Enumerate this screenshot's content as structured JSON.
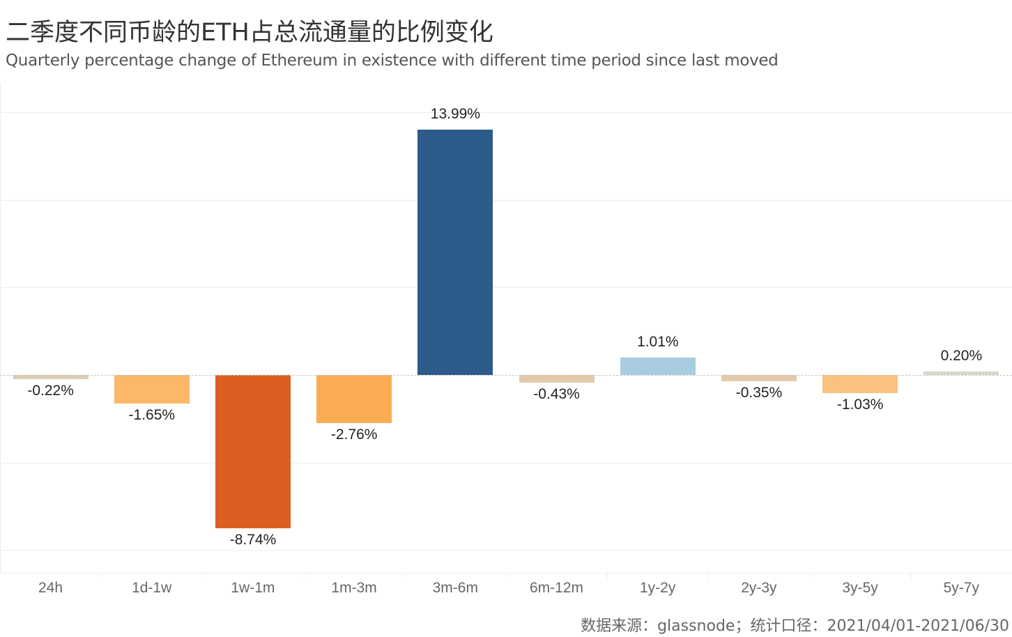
{
  "header": {
    "title": "二季度不同币龄的ETH占总流通量的比例变化",
    "subtitle": "Quarterly percentage change of Ethereum in existence with different time period since last moved"
  },
  "footer": {
    "source": "数据来源：glassnode；统计口径：2021/04/01-2021/06/30"
  },
  "chart_data": {
    "type": "bar",
    "title": "二季度不同币龄的ETH占总流通量的比例变化",
    "subtitle": "Quarterly percentage change of Ethereum in existence with different time period since last moved",
    "xlabel": "",
    "ylabel": "",
    "categories": [
      "24h",
      "1d-1w",
      "1w-1m",
      "1m-3m",
      "3m-6m",
      "6m-12m",
      "1y-2y",
      "2y-3y",
      "3y-5y",
      "5y-7y"
    ],
    "values": [
      -0.22,
      -1.65,
      -8.74,
      -2.76,
      13.99,
      -0.43,
      1.01,
      -0.35,
      -1.03,
      0.2
    ],
    "labels": [
      "-0.22%",
      "-1.65%",
      "-8.74%",
      "-2.76%",
      "13.99%",
      "-0.43%",
      "1.01%",
      "-0.35%",
      "-1.03%",
      "0.20%"
    ],
    "colors": [
      "#dccbb3",
      "#fbb868",
      "#dc5f22",
      "#fbac52",
      "#2d5b8a",
      "#e2c9a9",
      "#a8cde0",
      "#e2c9a9",
      "#f9c27e",
      "#d9d6cc"
    ],
    "ylim": [
      -11.3,
      15
    ],
    "grid": true,
    "gridline_step": 5,
    "y_tick_labels_visible": false,
    "zero_line": "dashed",
    "legend": "none",
    "source": "数据来源：glassnode；统计口径：2021/04/01-2021/06/30"
  }
}
